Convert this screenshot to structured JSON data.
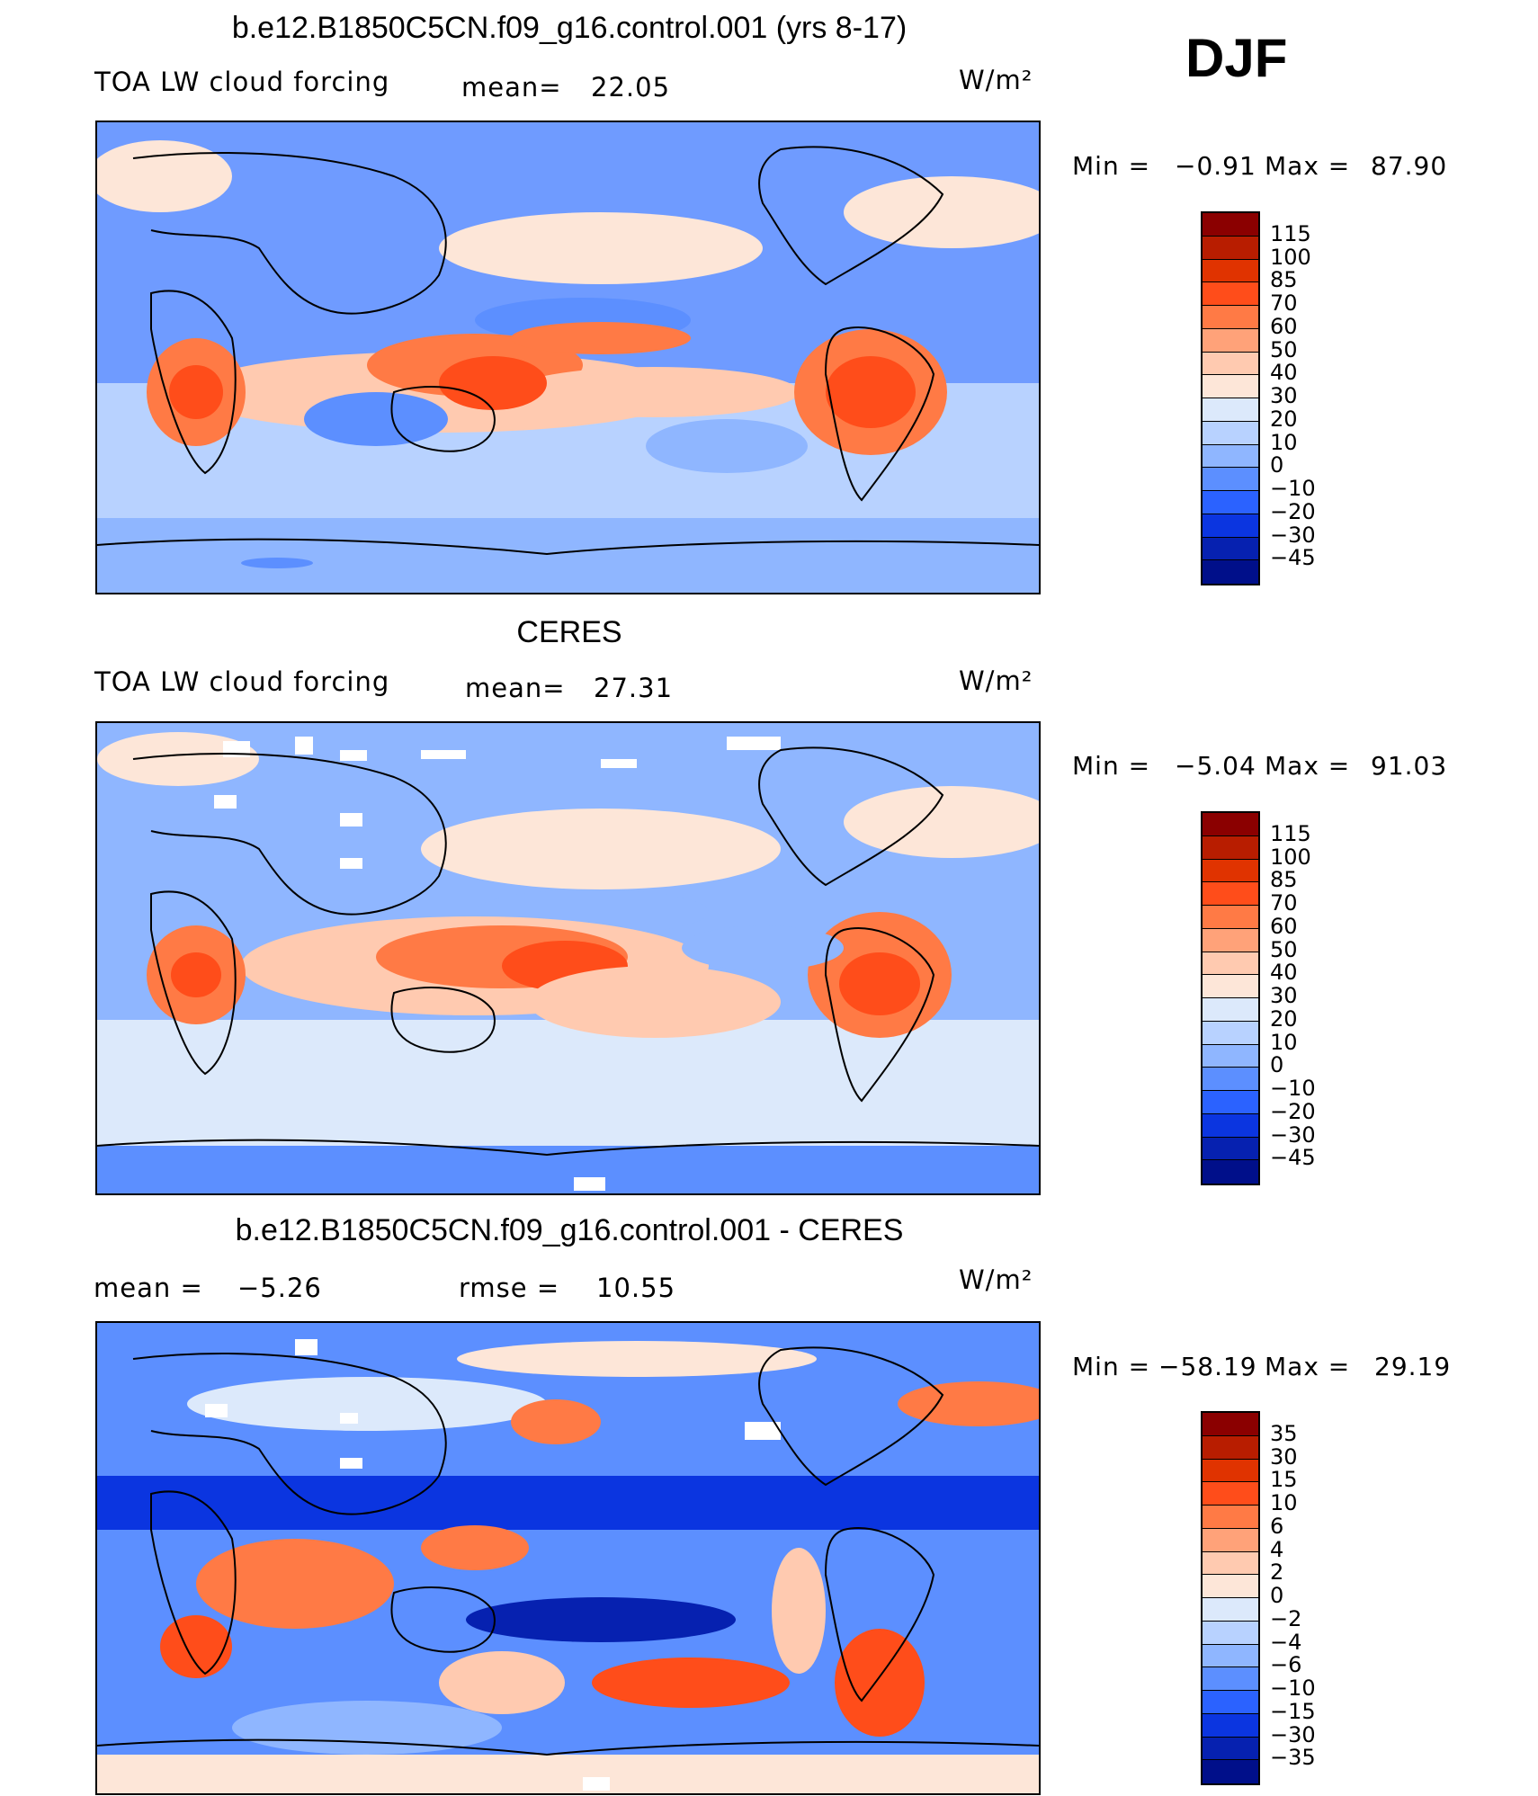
{
  "season": "DJF",
  "panels": [
    {
      "title": "b.e12.B1850C5CN.f09_g16.control.001 (yrs 8-17)",
      "left_label": "TOA LW cloud forcing",
      "stat_label": "mean=",
      "stat_value": "22.05",
      "units": "W/m²",
      "min_label": "Min =",
      "min_value": "−0.91",
      "max_label": "Max =",
      "max_value": "87.90",
      "colorbar": {
        "labels": [
          "115",
          "100",
          "85",
          "70",
          "60",
          "50",
          "40",
          "30",
          "20",
          "10",
          "0",
          "−10",
          "−20",
          "−30",
          "−45"
        ],
        "colors": [
          "#8b0000",
          "#b81d00",
          "#e03300",
          "#ff4d1a",
          "#ff7a45",
          "#ffa279",
          "#ffcab0",
          "#fde6d8",
          "#dce9fb",
          "#b8d2ff",
          "#8fb6ff",
          "#5c8fff",
          "#2b62ff",
          "#0b35e0",
          "#0621b0",
          "#000f8a"
        ]
      }
    },
    {
      "title": "CERES",
      "left_label": "TOA LW cloud forcing",
      "stat_label": "mean=",
      "stat_value": "27.31",
      "units": "W/m²",
      "min_label": "Min =",
      "min_value": "−5.04",
      "max_label": "Max =",
      "max_value": "91.03",
      "colorbar": {
        "labels": [
          "115",
          "100",
          "85",
          "70",
          "60",
          "50",
          "40",
          "30",
          "20",
          "10",
          "0",
          "−10",
          "−20",
          "−30",
          "−45"
        ],
        "colors": [
          "#8b0000",
          "#b81d00",
          "#e03300",
          "#ff4d1a",
          "#ff7a45",
          "#ffa279",
          "#ffcab0",
          "#fde6d8",
          "#dce9fb",
          "#b8d2ff",
          "#8fb6ff",
          "#5c8fff",
          "#2b62ff",
          "#0b35e0",
          "#0621b0",
          "#000f8a"
        ]
      }
    },
    {
      "title": "b.e12.B1850C5CN.f09_g16.control.001 - CERES",
      "left_label_prefix": "mean =",
      "left_label_value": "−5.26",
      "stat_label": "rmse =",
      "stat_value": "10.55",
      "units": "W/m²",
      "min_label": "Min =",
      "min_value": "−58.19",
      "max_label": "Max =",
      "max_value": "29.19",
      "colorbar": {
        "labels": [
          "35",
          "30",
          "15",
          "10",
          "6",
          "4",
          "2",
          "0",
          "−2",
          "−4",
          "−6",
          "−10",
          "−15",
          "−30",
          "−35"
        ],
        "colors": [
          "#8b0000",
          "#b81d00",
          "#e03300",
          "#ff4d1a",
          "#ff7a45",
          "#ffa279",
          "#ffcab0",
          "#fde6d8",
          "#dce9fb",
          "#b8d2ff",
          "#8fb6ff",
          "#5c8fff",
          "#2b62ff",
          "#0b35e0",
          "#0621b0",
          "#000f8a"
        ]
      }
    }
  ]
}
